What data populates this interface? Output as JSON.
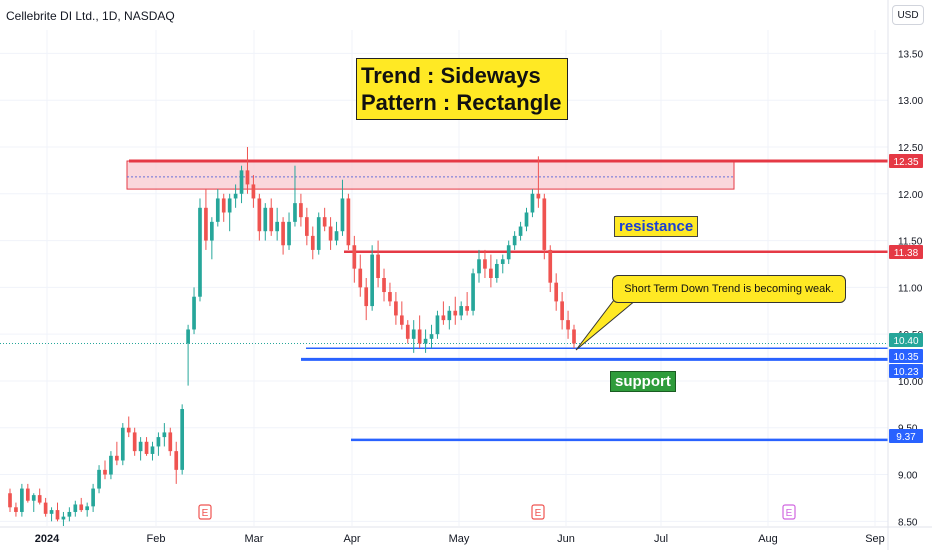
{
  "header": {
    "title": "Cellebrite DI Ltd., 1D, NASDAQ",
    "currency_button": "USD"
  },
  "annotations": {
    "trend_line1": "Trend : Sideways",
    "trend_line2": "Pattern : Rectangle",
    "resistance": "resistance",
    "support": "support",
    "callout": "Short Term Down Trend is becoming weak."
  },
  "colors": {
    "up": "#26a69a",
    "down": "#ef5350",
    "resistance": "#e53945",
    "support": "#2962ff",
    "zone": "#f8c9d0"
  },
  "chart_data": {
    "type": "candlestick",
    "y_axis": {
      "ticks": [
        "8.50",
        "9.00",
        "9.50",
        "10.00",
        "10.50",
        "11.00",
        "11.50",
        "12.00",
        "12.50",
        "13.00",
        "13.50"
      ],
      "ylim": [
        8.45,
        13.75
      ]
    },
    "x_axis": {
      "labels": [
        "2024",
        "Feb",
        "Mar",
        "Apr",
        "May",
        "Jun",
        "Jul",
        "Aug",
        "Sep"
      ]
    },
    "price_tags": [
      "12.35",
      "11.38",
      "10.40",
      "10.35",
      "10.23",
      "9.37"
    ],
    "levels": [
      {
        "value": 12.35,
        "kind": "resistance"
      },
      {
        "value": 11.38,
        "kind": "resistance"
      },
      {
        "value": 10.35,
        "kind": "support"
      },
      {
        "value": 10.23,
        "kind": "support"
      },
      {
        "value": 9.37,
        "kind": "support"
      }
    ],
    "current_price": 10.4,
    "resistance_zone": {
      "top": 12.35,
      "bottom": 12.05,
      "mid": 12.18
    },
    "earnings_markers": [
      "E",
      "E",
      "E"
    ],
    "candles": [
      [
        8.8,
        8.85,
        8.6,
        8.65
      ],
      [
        8.65,
        8.7,
        8.55,
        8.6
      ],
      [
        8.6,
        8.9,
        8.55,
        8.85
      ],
      [
        8.85,
        8.9,
        8.7,
        8.72
      ],
      [
        8.72,
        8.8,
        8.6,
        8.78
      ],
      [
        8.78,
        8.85,
        8.68,
        8.7
      ],
      [
        8.7,
        8.75,
        8.55,
        8.58
      ],
      [
        8.58,
        8.65,
        8.5,
        8.62
      ],
      [
        8.62,
        8.7,
        8.5,
        8.52
      ],
      [
        8.52,
        8.6,
        8.45,
        8.55
      ],
      [
        8.55,
        8.65,
        8.5,
        8.6
      ],
      [
        8.6,
        8.72,
        8.55,
        8.68
      ],
      [
        8.68,
        8.75,
        8.6,
        8.62
      ],
      [
        8.62,
        8.7,
        8.55,
        8.66
      ],
      [
        8.66,
        8.9,
        8.6,
        8.85
      ],
      [
        8.85,
        9.1,
        8.8,
        9.05
      ],
      [
        9.05,
        9.15,
        8.95,
        9.0
      ],
      [
        9.0,
        9.25,
        8.95,
        9.2
      ],
      [
        9.2,
        9.35,
        9.1,
        9.15
      ],
      [
        9.15,
        9.55,
        9.1,
        9.5
      ],
      [
        9.5,
        9.62,
        9.4,
        9.45
      ],
      [
        9.45,
        9.5,
        9.2,
        9.25
      ],
      [
        9.25,
        9.4,
        9.15,
        9.35
      ],
      [
        9.35,
        9.4,
        9.2,
        9.22
      ],
      [
        9.22,
        9.35,
        9.15,
        9.3
      ],
      [
        9.3,
        9.45,
        9.2,
        9.4
      ],
      [
        9.4,
        9.55,
        9.3,
        9.45
      ],
      [
        9.45,
        9.5,
        9.2,
        9.25
      ],
      [
        9.25,
        9.35,
        8.9,
        9.05
      ],
      [
        9.05,
        9.75,
        9.0,
        9.7
      ],
      [
        10.4,
        10.6,
        9.95,
        10.55
      ],
      [
        10.55,
        11.0,
        10.5,
        10.9
      ],
      [
        10.9,
        11.95,
        10.85,
        11.85
      ],
      [
        11.85,
        12.05,
        11.4,
        11.5
      ],
      [
        11.5,
        11.75,
        11.3,
        11.7
      ],
      [
        11.7,
        12.05,
        11.65,
        11.95
      ],
      [
        11.95,
        12.0,
        11.7,
        11.8
      ],
      [
        11.8,
        12.0,
        11.6,
        11.95
      ],
      [
        11.95,
        12.1,
        11.85,
        12.0
      ],
      [
        12.0,
        12.3,
        11.9,
        12.25
      ],
      [
        12.25,
        12.5,
        12.0,
        12.1
      ],
      [
        12.1,
        12.2,
        11.85,
        11.95
      ],
      [
        11.95,
        12.0,
        11.5,
        11.6
      ],
      [
        11.6,
        11.9,
        11.5,
        11.85
      ],
      [
        11.85,
        11.95,
        11.55,
        11.6
      ],
      [
        11.6,
        11.85,
        11.5,
        11.7
      ],
      [
        11.7,
        11.75,
        11.35,
        11.45
      ],
      [
        11.45,
        11.8,
        11.4,
        11.7
      ],
      [
        11.7,
        12.3,
        11.65,
        11.9
      ],
      [
        11.9,
        12.0,
        11.65,
        11.75
      ],
      [
        11.75,
        11.85,
        11.45,
        11.55
      ],
      [
        11.55,
        11.65,
        11.3,
        11.4
      ],
      [
        11.4,
        11.8,
        11.35,
        11.75
      ],
      [
        11.75,
        11.85,
        11.6,
        11.65
      ],
      [
        11.65,
        11.75,
        11.4,
        11.5
      ],
      [
        11.5,
        11.7,
        11.45,
        11.6
      ],
      [
        11.6,
        12.15,
        11.55,
        11.95
      ],
      [
        11.95,
        12.0,
        11.4,
        11.45
      ],
      [
        11.45,
        11.55,
        11.05,
        11.2
      ],
      [
        11.2,
        11.35,
        10.9,
        11.0
      ],
      [
        11.0,
        11.1,
        10.65,
        10.8
      ],
      [
        10.8,
        11.45,
        10.75,
        11.35
      ],
      [
        11.35,
        11.5,
        11.0,
        11.1
      ],
      [
        11.1,
        11.2,
        10.85,
        10.95
      ],
      [
        10.95,
        11.05,
        10.8,
        10.85
      ],
      [
        10.85,
        10.95,
        10.6,
        10.7
      ],
      [
        10.7,
        10.85,
        10.55,
        10.6
      ],
      [
        10.6,
        10.65,
        10.4,
        10.45
      ],
      [
        10.45,
        10.65,
        10.3,
        10.55
      ],
      [
        10.55,
        10.7,
        10.35,
        10.4
      ],
      [
        10.4,
        10.55,
        10.3,
        10.45
      ],
      [
        10.45,
        10.6,
        10.35,
        10.5
      ],
      [
        10.5,
        10.75,
        10.45,
        10.7
      ],
      [
        10.7,
        10.85,
        10.6,
        10.65
      ],
      [
        10.65,
        10.8,
        10.55,
        10.75
      ],
      [
        10.75,
        10.9,
        10.6,
        10.7
      ],
      [
        10.7,
        10.85,
        10.65,
        10.8
      ],
      [
        10.8,
        10.95,
        10.7,
        10.75
      ],
      [
        10.75,
        11.2,
        10.7,
        11.15
      ],
      [
        11.15,
        11.4,
        11.05,
        11.3
      ],
      [
        11.3,
        11.4,
        11.1,
        11.2
      ],
      [
        11.2,
        11.35,
        11.0,
        11.1
      ],
      [
        11.1,
        11.3,
        11.05,
        11.25
      ],
      [
        11.25,
        11.35,
        11.15,
        11.3
      ],
      [
        11.3,
        11.5,
        11.25,
        11.45
      ],
      [
        11.45,
        11.6,
        11.4,
        11.55
      ],
      [
        11.55,
        11.7,
        11.5,
        11.65
      ],
      [
        11.65,
        11.85,
        11.6,
        11.8
      ],
      [
        11.8,
        12.05,
        11.75,
        12.0
      ],
      [
        12.0,
        12.4,
        11.85,
        11.95
      ],
      [
        11.95,
        12.0,
        11.3,
        11.4
      ],
      [
        11.4,
        11.45,
        10.95,
        11.05
      ],
      [
        11.05,
        11.15,
        10.75,
        10.85
      ],
      [
        10.85,
        10.95,
        10.55,
        10.65
      ],
      [
        10.65,
        10.75,
        10.45,
        10.55
      ],
      [
        10.55,
        10.6,
        10.35,
        10.4
      ]
    ]
  }
}
